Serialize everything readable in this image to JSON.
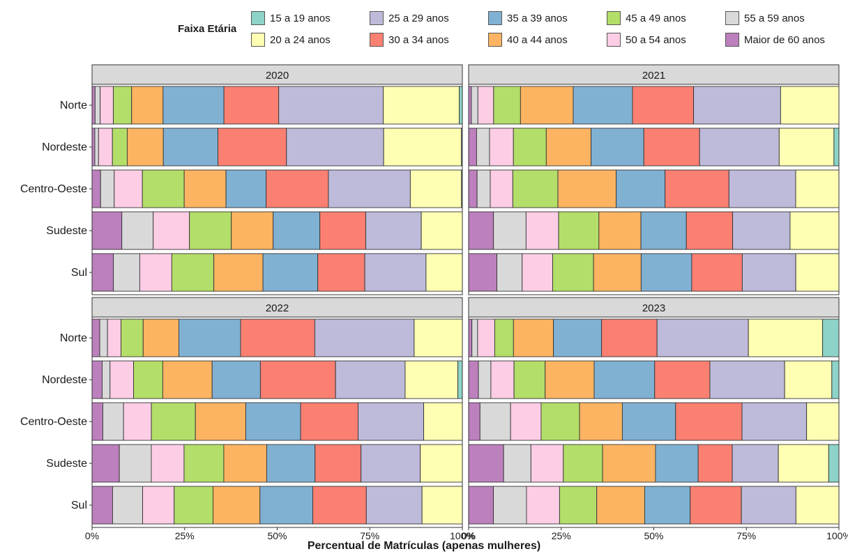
{
  "chart_data": {
    "type": "bar",
    "orientation": "horizontal",
    "stacked": "percent",
    "legend": {
      "title": "Faixa Etária",
      "placement": "top",
      "items": [
        {
          "label": "15 a 19 anos",
          "color": "#8dd3c7"
        },
        {
          "label": "20 a 24 anos",
          "color": "#ffffb3"
        },
        {
          "label": "25 a 29 anos",
          "color": "#bebada"
        },
        {
          "label": "30 a 34 anos",
          "color": "#fb8072"
        },
        {
          "label": "35 a 39 anos",
          "color": "#80b1d3"
        },
        {
          "label": "40 a 44 anos",
          "color": "#fdb462"
        },
        {
          "label": "45 a 49 anos",
          "color": "#b3de69"
        },
        {
          "label": "50 a 54 anos",
          "color": "#fccde5"
        },
        {
          "label": "55 a 59 anos",
          "color": "#d9d9d9"
        },
        {
          "label": "Maior de 60 anos",
          "color": "#bc80bd"
        }
      ]
    },
    "stack_order_left_to_right": [
      "Maior de 60 anos",
      "55 a 59 anos",
      "50 a 54 anos",
      "45 a 49 anos",
      "40 a 44 anos",
      "35 a 39 anos",
      "30 a 34 anos",
      "25 a 29 anos",
      "20 a 24 anos",
      "15 a 19 anos"
    ],
    "categories": [
      "Norte",
      "Nordeste",
      "Centro-Oeste",
      "Sudeste",
      "Sul"
    ],
    "xlabel": "Percentual de Matrículas (apenas mulheres)",
    "ylabel": "",
    "xlim": [
      0,
      100
    ],
    "x_ticks": [
      "0%",
      "25%",
      "50%",
      "75%",
      "100%"
    ],
    "grid": false,
    "facets": [
      {
        "label": "2020",
        "bars": [
          [
            0.3,
            0.5,
            1.3,
            1.8,
            3.1,
            6.0,
            5.4,
            10.3,
            7.5,
            0.3
          ],
          [
            0.3,
            0.4,
            1.5,
            1.6,
            3.9,
            5.9,
            7.4,
            10.5,
            8.4,
            0.1
          ],
          [
            1.0,
            1.6,
            3.3,
            4.9,
            4.9,
            4.7,
            7.3,
            9.6,
            6.0,
            0.1
          ],
          [
            3.7,
            3.9,
            4.5,
            5.2,
            5.2,
            5.8,
            5.7,
            6.9,
            5.1,
            0.0
          ],
          [
            3.0,
            3.7,
            4.5,
            5.9,
            6.9,
            7.7,
            6.6,
            8.6,
            5.1,
            0.0
          ]
        ]
      },
      {
        "label": "2021",
        "bars": [
          [
            0.3,
            0.7,
            1.7,
            2.9,
            5.7,
            6.4,
            6.6,
            9.4,
            6.3,
            0.0
          ],
          [
            0.8,
            1.3,
            2.4,
            3.3,
            4.5,
            5.3,
            5.6,
            8.0,
            5.5,
            0.5
          ],
          [
            0.9,
            1.4,
            2.4,
            4.8,
            6.2,
            5.2,
            6.8,
            7.1,
            4.6,
            0.0
          ],
          [
            2.9,
            3.8,
            3.8,
            4.7,
            4.9,
            5.3,
            5.4,
            6.7,
            5.7,
            0.0
          ],
          [
            3.8,
            3.4,
            4.1,
            5.5,
            6.4,
            6.8,
            6.8,
            7.2,
            5.8,
            0.0
          ]
        ]
      },
      {
        "label": "2022",
        "bars": [
          [
            0.8,
            0.8,
            1.4,
            2.3,
            3.7,
            6.4,
            7.7,
            10.3,
            5.0,
            0.0
          ],
          [
            0.9,
            0.7,
            2.1,
            2.6,
            4.4,
            4.3,
            6.7,
            6.2,
            4.7,
            0.4
          ],
          [
            1.2,
            2.3,
            3.1,
            4.9,
            5.6,
            6.1,
            6.4,
            7.3,
            4.3,
            0.0
          ],
          [
            3.5,
            4.1,
            4.2,
            5.1,
            5.5,
            6.2,
            5.9,
            7.6,
            5.4,
            0.0
          ],
          [
            2.8,
            4.1,
            4.3,
            5.3,
            6.4,
            7.2,
            7.3,
            7.6,
            5.5,
            0.0
          ]
        ]
      },
      {
        "label": "2023",
        "bars": [
          [
            0.4,
            0.7,
            2.1,
            2.3,
            4.9,
            5.9,
            6.8,
            11.2,
            9.1,
            2.0
          ],
          [
            1.1,
            1.4,
            2.6,
            3.5,
            5.5,
            6.8,
            6.2,
            8.4,
            5.3,
            0.8
          ],
          [
            1.3,
            3.5,
            3.5,
            4.4,
            4.9,
            6.1,
            7.6,
            7.4,
            3.7,
            0.0
          ],
          [
            4.1,
            3.2,
            3.8,
            4.6,
            6.2,
            5.0,
            4.0,
            5.4,
            5.9,
            1.2
          ],
          [
            3.0,
            4.0,
            4.0,
            4.5,
            5.8,
            5.5,
            6.2,
            6.6,
            5.2,
            0.0
          ]
        ]
      }
    ]
  }
}
